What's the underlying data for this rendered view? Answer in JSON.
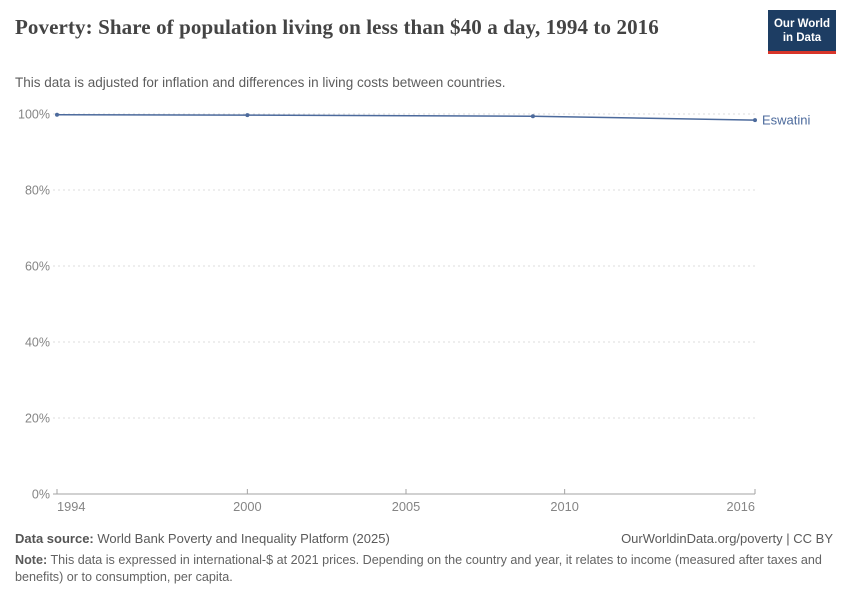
{
  "header": {
    "title": "Poverty: Share of population living on less than $40 a day, 1994 to 2016",
    "subtitle": "This data is adjusted for inflation and differences in living costs between countries.",
    "logo": {
      "line1": "Our World",
      "line2": "in Data",
      "bg_color": "#1d3d63",
      "accent_color": "#d8352a"
    }
  },
  "chart_data": {
    "type": "line",
    "title": "Poverty: Share of population living on less than $40 a day, 1994 to 2016",
    "xlabel": "",
    "ylabel": "",
    "xlim": [
      1994,
      2016
    ],
    "ylim": [
      0,
      100
    ],
    "xticks": [
      1994,
      2000,
      2005,
      2010,
      2016
    ],
    "ytick_values": [
      0,
      20,
      40,
      60,
      80,
      100
    ],
    "yticks": [
      "0%",
      "20%",
      "40%",
      "60%",
      "80%",
      "100%"
    ],
    "grid": "horizontal-dashed",
    "legend_position": "end-of-line-label",
    "series": [
      {
        "name": "Eswatini",
        "color": "#4c6a9c",
        "x": [
          1994,
          2000,
          2009,
          2016
        ],
        "values": [
          99.8,
          99.7,
          99.4,
          98.4
        ]
      }
    ]
  },
  "footer": {
    "datasource_label": "Data source:",
    "datasource_text": " World Bank Poverty and Inequality Platform (2025)",
    "attribution": "OurWorldinData.org/poverty | CC BY",
    "note_label": "Note:",
    "note_text": " This data is expressed in international-$ at 2021 prices. Depending on the country and year, it relates to income (measured after taxes and benefits) or to consumption, per capita."
  }
}
